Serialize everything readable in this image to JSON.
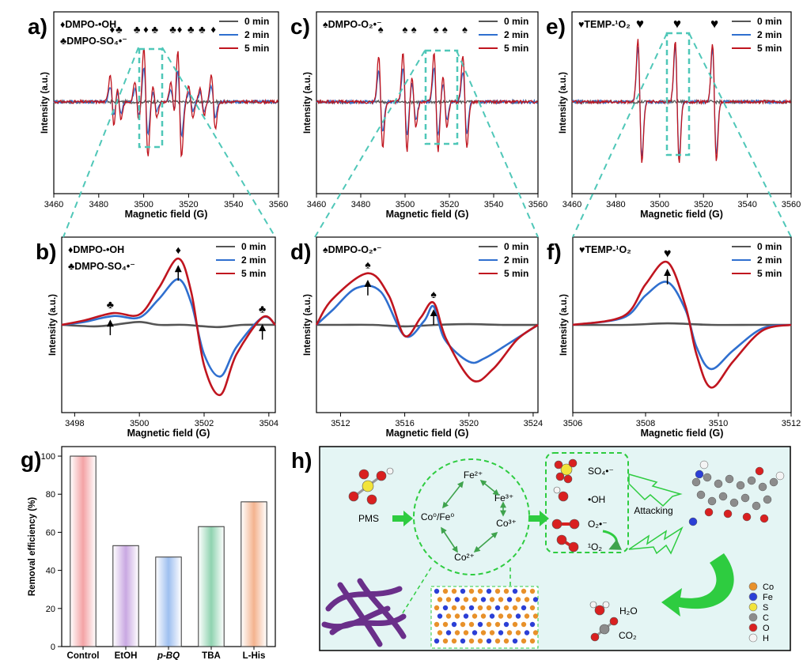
{
  "chart_data": [
    {
      "panel": "a",
      "type": "line",
      "title": "a)",
      "xlabel": "Magnetic field (G)",
      "ylabel": "Intensity (a.u.)",
      "xlim": [
        3460,
        3560
      ],
      "xticks": [
        "3460",
        "3480",
        "3500",
        "3520",
        "3540",
        "3560"
      ],
      "legend_pos": "top-right",
      "species": [
        "♦DMPO-•OH",
        "♣DMPO-SO₄•⁻"
      ],
      "markers": [
        {
          "symbol": "♦",
          "x": 3486
        },
        {
          "symbol": "♣",
          "x": 3489
        },
        {
          "symbol": "♣",
          "x": 3497
        },
        {
          "symbol": "♦",
          "x": 3501
        },
        {
          "symbol": "♣",
          "x": 3505
        },
        {
          "symbol": "♣",
          "x": 3513
        },
        {
          "symbol": "♦",
          "x": 3516
        },
        {
          "symbol": "♣",
          "x": 3521
        },
        {
          "symbol": "♣",
          "x": 3526
        },
        {
          "symbol": "♦",
          "x": 3531
        }
      ],
      "peaks": [
        {
          "x": 3486,
          "amp": [
            0,
            0.25,
            0.45
          ]
        },
        {
          "x": 3489,
          "amp": [
            0,
            0.18,
            0.3
          ]
        },
        {
          "x": 3497,
          "amp": [
            0,
            0.2,
            0.32
          ]
        },
        {
          "x": 3501,
          "amp": [
            0,
            0.55,
            0.9
          ]
        },
        {
          "x": 3505,
          "amp": [
            0,
            0.15,
            0.25
          ]
        },
        {
          "x": 3513,
          "amp": [
            0,
            0.2,
            0.3
          ]
        },
        {
          "x": 3516,
          "amp": [
            0,
            0.55,
            0.9
          ]
        },
        {
          "x": 3521,
          "amp": [
            0,
            0.15,
            0.25
          ]
        },
        {
          "x": 3526,
          "amp": [
            0,
            0.15,
            0.22
          ]
        },
        {
          "x": 3531,
          "amp": [
            0,
            0.25,
            0.45
          ]
        }
      ],
      "series": [
        {
          "name": "0 min",
          "color": "#555555"
        },
        {
          "name": "2 min",
          "color": "#2f6fcf"
        },
        {
          "name": "5 min",
          "color": "#c0151f"
        }
      ]
    },
    {
      "panel": "c",
      "type": "line",
      "title": "c)",
      "xlabel": "Magnetic field (G)",
      "ylabel": "Intensity (a.u.)",
      "xlim": [
        3460,
        3560
      ],
      "xticks": [
        "3460",
        "3480",
        "3500",
        "3520",
        "3540",
        "3560"
      ],
      "legend_pos": "top-right",
      "species": [
        "♠DMPO-O₂•⁻"
      ],
      "markers": [
        {
          "symbol": "♠",
          "x": 3489
        },
        {
          "symbol": "♠",
          "x": 3500
        },
        {
          "symbol": "♠",
          "x": 3504
        },
        {
          "symbol": "♠",
          "x": 3514
        },
        {
          "symbol": "♠",
          "x": 3518
        },
        {
          "symbol": "♠",
          "x": 3527
        }
      ],
      "peaks": [
        {
          "x": 3489,
          "amp": [
            0,
            0.5,
            0.75
          ]
        },
        {
          "x": 3500,
          "amp": [
            0,
            0.55,
            0.8
          ]
        },
        {
          "x": 3504,
          "amp": [
            0,
            0.3,
            0.4
          ]
        },
        {
          "x": 3514,
          "amp": [
            0,
            0.55,
            0.8
          ]
        },
        {
          "x": 3518,
          "amp": [
            0,
            0.3,
            0.4
          ]
        },
        {
          "x": 3527,
          "amp": [
            0,
            0.5,
            0.75
          ]
        }
      ],
      "series": [
        {
          "name": "0 min",
          "color": "#555555"
        },
        {
          "name": "2 min",
          "color": "#2f6fcf"
        },
        {
          "name": "5 min",
          "color": "#c0151f"
        }
      ]
    },
    {
      "panel": "e",
      "type": "line",
      "title": "e)",
      "xlabel": "Magnetic field (G)",
      "ylabel": "Intensity (a.u.)",
      "xlim": [
        3460,
        3560
      ],
      "xticks": [
        "3460",
        "3480",
        "3500",
        "3520",
        "3540",
        "3560"
      ],
      "legend_pos": "top-right",
      "species": [
        "♥TEMP-¹O₂"
      ],
      "markers": [
        {
          "symbol": "♥",
          "x": 3491
        },
        {
          "symbol": "♥",
          "x": 3508
        },
        {
          "symbol": "♥",
          "x": 3525
        }
      ],
      "peaks": [
        {
          "x": 3491,
          "amp": [
            0,
            0.9,
            1.0
          ]
        },
        {
          "x": 3508,
          "amp": [
            0,
            0.9,
            1.0
          ]
        },
        {
          "x": 3525,
          "amp": [
            0,
            0.85,
            0.95
          ]
        }
      ],
      "series": [
        {
          "name": "0 min",
          "color": "#555555"
        },
        {
          "name": "2 min",
          "color": "#2f6fcf"
        },
        {
          "name": "5 min",
          "color": "#c0151f"
        }
      ]
    },
    {
      "panel": "b",
      "type": "line",
      "title": "b)",
      "xlabel": "Magnetic field (G)",
      "ylabel": "Intensity (a.u.)",
      "xlim": [
        3497.6,
        3504.2
      ],
      "xticks": [
        "3498",
        "3500",
        "3502",
        "3504"
      ],
      "legend_pos": "top-right",
      "species": [
        "♦DMPO-•OH",
        "♣DMPO-SO₄•⁻"
      ],
      "markers": [
        {
          "symbol": "♣",
          "x": 3499.1
        },
        {
          "symbol": "♦",
          "x": 3501.2
        },
        {
          "symbol": "♣",
          "x": 3503.8
        }
      ],
      "curves": [
        {
          "name": "0 min",
          "color": "#555555",
          "points": [
            [
              3497.6,
              0.0
            ],
            [
              3498.6,
              -0.02
            ],
            [
              3499.2,
              0.0
            ],
            [
              3500.0,
              0.04
            ],
            [
              3500.6,
              0.0
            ],
            [
              3501.4,
              0.0
            ],
            [
              3502.4,
              -0.03
            ],
            [
              3503.2,
              0.0
            ],
            [
              3504.2,
              0.0
            ]
          ]
        },
        {
          "name": "2 min",
          "color": "#2f6fcf",
          "points": [
            [
              3497.6,
              0.0
            ],
            [
              3498.3,
              0.04
            ],
            [
              3499.2,
              0.12
            ],
            [
              3500.0,
              0.1
            ],
            [
              3500.6,
              0.35
            ],
            [
              3501.2,
              0.62
            ],
            [
              3501.6,
              0.3
            ],
            [
              3502.0,
              -0.4
            ],
            [
              3502.5,
              -0.7
            ],
            [
              3503.0,
              -0.3
            ],
            [
              3503.8,
              0.1
            ],
            [
              3504.2,
              0.0
            ]
          ]
        },
        {
          "name": "5 min",
          "color": "#c0151f",
          "points": [
            [
              3497.6,
              0.0
            ],
            [
              3498.3,
              0.06
            ],
            [
              3499.2,
              0.16
            ],
            [
              3500.0,
              0.14
            ],
            [
              3500.6,
              0.5
            ],
            [
              3501.2,
              0.9
            ],
            [
              3501.6,
              0.45
            ],
            [
              3502.0,
              -0.55
            ],
            [
              3502.5,
              -0.95
            ],
            [
              3503.0,
              -0.4
            ],
            [
              3503.8,
              0.1
            ],
            [
              3504.2,
              0.0
            ]
          ]
        }
      ]
    },
    {
      "panel": "d",
      "type": "line",
      "title": "d)",
      "xlabel": "Magnetic field (G)",
      "ylabel": "Intensity (a.u.)",
      "xlim": [
        3510.5,
        3524.3
      ],
      "xticks": [
        "3512",
        "3516",
        "3520",
        "3524"
      ],
      "legend_pos": "top-right",
      "species": [
        "♠DMPO-O₂•⁻"
      ],
      "markers": [
        {
          "symbol": "♠",
          "x": 3513.7
        },
        {
          "symbol": "♠",
          "x": 3517.8
        }
      ],
      "curves": [
        {
          "name": "0 min",
          "color": "#555555",
          "points": [
            [
              3510.5,
              0.0
            ],
            [
              3512,
              0.0
            ],
            [
              3514,
              0.0
            ],
            [
              3516,
              -0.02
            ],
            [
              3518,
              0.0
            ],
            [
              3520,
              0.01
            ],
            [
              3522,
              0.0
            ],
            [
              3524.3,
              0.0
            ]
          ]
        },
        {
          "name": "2 min",
          "color": "#2f6fcf",
          "points": [
            [
              3510.5,
              0.0
            ],
            [
              3511.5,
              0.2
            ],
            [
              3513,
              0.5
            ],
            [
              3514.5,
              0.45
            ],
            [
              3516,
              -0.15
            ],
            [
              3517.2,
              0.05
            ],
            [
              3517.8,
              0.25
            ],
            [
              3518.5,
              -0.2
            ],
            [
              3520,
              -0.5
            ],
            [
              3521,
              -0.45
            ],
            [
              3522.5,
              -0.25
            ],
            [
              3524.3,
              0.0
            ]
          ]
        },
        {
          "name": "5 min",
          "color": "#c0151f",
          "points": [
            [
              3510.5,
              0.0
            ],
            [
              3511.5,
              0.35
            ],
            [
              3513.7,
              0.7
            ],
            [
              3515,
              0.4
            ],
            [
              3516,
              -0.15
            ],
            [
              3517,
              0.1
            ],
            [
              3517.8,
              0.3
            ],
            [
              3518.6,
              -0.2
            ],
            [
              3520.2,
              -0.75
            ],
            [
              3521.5,
              -0.6
            ],
            [
              3523,
              -0.2
            ],
            [
              3524.3,
              0.0
            ]
          ]
        }
      ]
    },
    {
      "panel": "f",
      "type": "line",
      "title": "f)",
      "xlabel": "Magnetic field (G)",
      "ylabel": "Intensity (a.u.)",
      "xlim": [
        3506,
        3512
      ],
      "xticks": [
        "3506",
        "3508",
        "3510",
        "3512"
      ],
      "legend_pos": "top-right",
      "species": [
        "♥TEMP-¹O₂"
      ],
      "markers": [
        {
          "symbol": "♥",
          "x": 3508.6
        }
      ],
      "curves": [
        {
          "name": "0 min",
          "color": "#555555",
          "points": [
            [
              3506,
              0.0
            ],
            [
              3507.5,
              0.0
            ],
            [
              3508.6,
              0.02
            ],
            [
              3509.8,
              0.0
            ],
            [
              3511,
              0.0
            ],
            [
              3512,
              0.0
            ]
          ]
        },
        {
          "name": "2 min",
          "color": "#2f6fcf",
          "points": [
            [
              3506,
              0.0
            ],
            [
              3507.4,
              0.1
            ],
            [
              3508.0,
              0.4
            ],
            [
              3508.6,
              0.58
            ],
            [
              3509.1,
              0.2
            ],
            [
              3509.4,
              -0.3
            ],
            [
              3509.8,
              -0.6
            ],
            [
              3510.4,
              -0.35
            ],
            [
              3511.2,
              -0.05
            ],
            [
              3512,
              0.0
            ]
          ]
        },
        {
          "name": "5 min",
          "color": "#c0151f",
          "points": [
            [
              3506,
              0.0
            ],
            [
              3507.4,
              0.12
            ],
            [
              3508.0,
              0.55
            ],
            [
              3508.6,
              0.85
            ],
            [
              3509.1,
              0.25
            ],
            [
              3509.4,
              -0.4
            ],
            [
              3509.8,
              -0.85
            ],
            [
              3510.4,
              -0.5
            ],
            [
              3511.2,
              -0.08
            ],
            [
              3512,
              0.0
            ]
          ]
        }
      ]
    },
    {
      "panel": "g",
      "type": "bar",
      "title": "g)",
      "xlabel": "",
      "ylabel": "Removal efficiency (%)",
      "ylim": [
        0,
        105
      ],
      "yticks": [
        "0",
        "20",
        "40",
        "60",
        "80",
        "100"
      ],
      "categories": [
        "Control",
        "EtOH",
        "p-BQ",
        "TBA",
        "L-His"
      ],
      "values": [
        100,
        53,
        47,
        63,
        76
      ],
      "colors": [
        "#f4a3a5",
        "#c9a8e2",
        "#9ebff0",
        "#8fd3b0",
        "#f4b38f"
      ]
    }
  ],
  "scheme": {
    "label": "h)",
    "pms": "PMS",
    "center": "Co⁰/Fe⁰",
    "fe2": "Fe²⁺",
    "fe3": "Fe³⁺",
    "co3": "Co³⁺",
    "co2": "Co²⁺",
    "radicals": [
      "SO₄•⁻",
      "•OH",
      "O₂•⁻",
      "¹O₂"
    ],
    "attacking": "Attacking",
    "h2o": "H₂O",
    "co2_gas": "CO₂",
    "legend": [
      {
        "label": "Co",
        "color": "#e8912a"
      },
      {
        "label": "Fe",
        "color": "#2b3fd6"
      },
      {
        "label": "S",
        "color": "#f2e43a"
      },
      {
        "label": "C",
        "color": "#8c8c8c"
      },
      {
        "label": "O",
        "color": "#d92020"
      },
      {
        "label": "H",
        "color": "#f4f4f4"
      }
    ]
  }
}
